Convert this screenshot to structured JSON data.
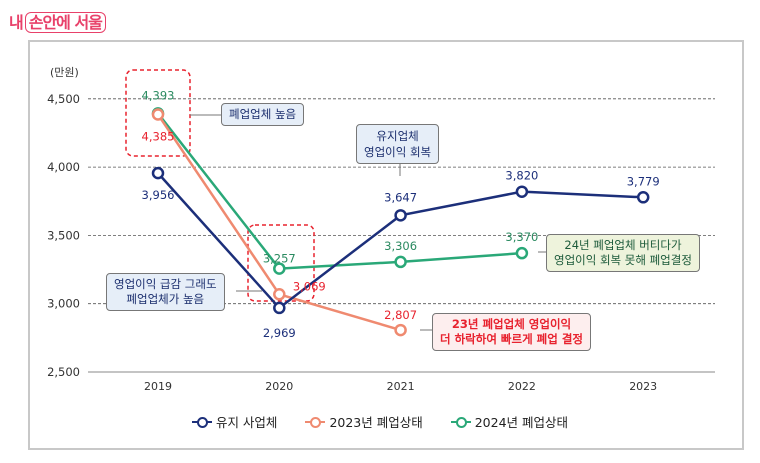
{
  "logo": {
    "prefix": "내",
    "boxed": "손안에 서울"
  },
  "chart_data": {
    "type": "line",
    "ylabel": "(만원)",
    "categories": [
      "2019",
      "2020",
      "2021",
      "2022",
      "2023"
    ],
    "ylim": [
      2500,
      4500
    ],
    "yticks": [
      "4,500",
      "4,000",
      "3,500",
      "3,000",
      "2,500"
    ],
    "grid": true,
    "legend_position": "bottom",
    "series": [
      {
        "name": "유지 사업체",
        "color": "#1c2f7a",
        "values": [
          3956,
          2969,
          3647,
          3820,
          3779
        ],
        "labels": [
          "3,956",
          "2,969",
          "3,647",
          "3,820",
          "3,779"
        ]
      },
      {
        "name": "2023년 폐업상태",
        "color": "#ef8a70",
        "values": [
          4385,
          3069,
          2807,
          null,
          null
        ],
        "labels": [
          "4,385",
          "3,069",
          "2,807",
          "",
          ""
        ]
      },
      {
        "name": "2024년 폐업상태",
        "color": "#2aa878",
        "values": [
          4393,
          3257,
          3306,
          3370,
          null
        ],
        "labels": [
          "4,393",
          "3,257",
          "3,306",
          "3,370",
          ""
        ]
      }
    ],
    "annotations": [
      {
        "text": "폐업업체 높음"
      },
      {
        "text": "유지업체\n영업이익 회복"
      },
      {
        "text": "영업이익 급감 그래도\n폐업업체가 높음"
      },
      {
        "text": "24년 폐업업체 버티다가\n영업이익 회복 못해 폐업결정"
      },
      {
        "text": "23년 폐업업체 영업이익\n더 하락하여 빠르게 폐업 결정"
      }
    ]
  }
}
